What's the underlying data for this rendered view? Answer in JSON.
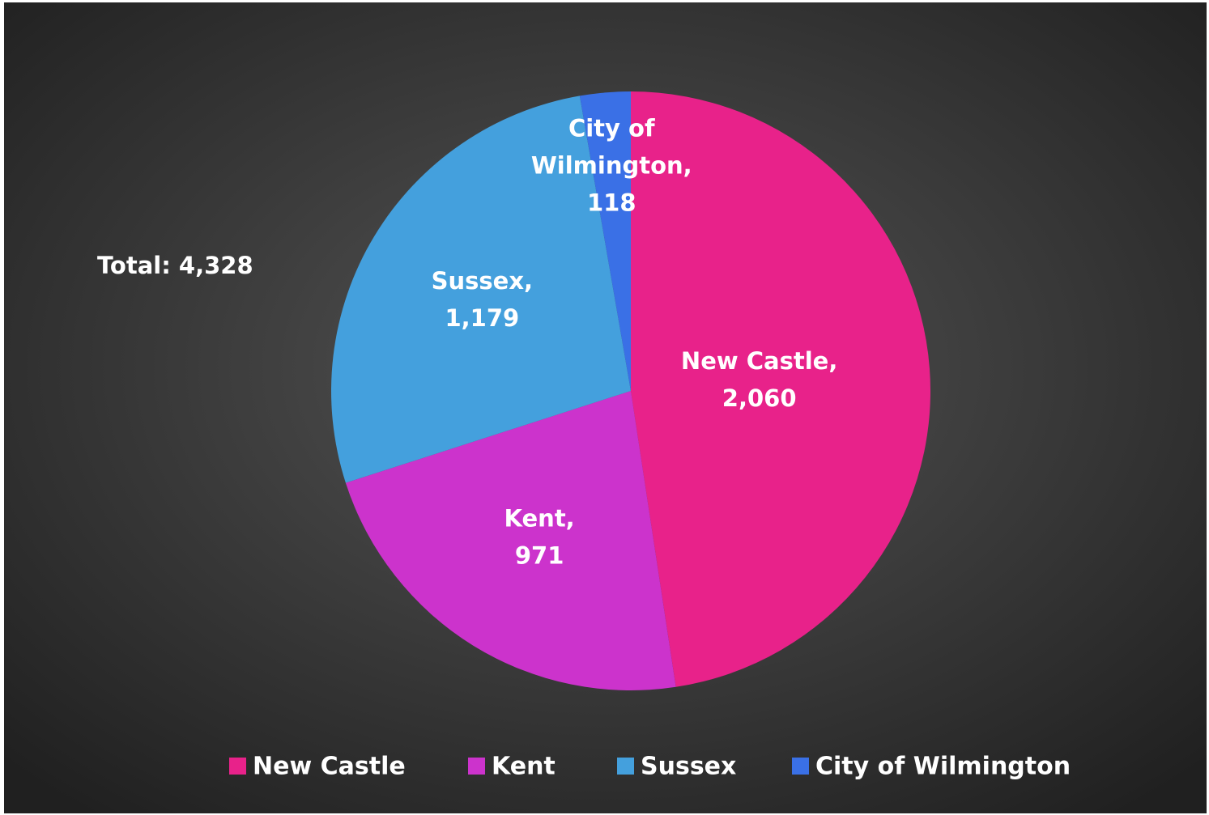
{
  "chart_data": {
    "type": "pie",
    "categories": [
      "New Castle",
      "Kent",
      "Sussex",
      "City of Wilmington"
    ],
    "values": [
      2060,
      971,
      1179,
      118
    ],
    "data_labels": [
      [
        "New Castle,",
        "2,060"
      ],
      [
        "Kent,",
        "971"
      ],
      [
        "Sussex,",
        "1,179"
      ],
      [
        "City of",
        "Wilmington,",
        "118"
      ]
    ],
    "colors": [
      "#e8228a",
      "#cc33cc",
      "#44a0dd",
      "#3a70e6"
    ],
    "annotation": "Total: 4,328",
    "legend": "bottom"
  }
}
